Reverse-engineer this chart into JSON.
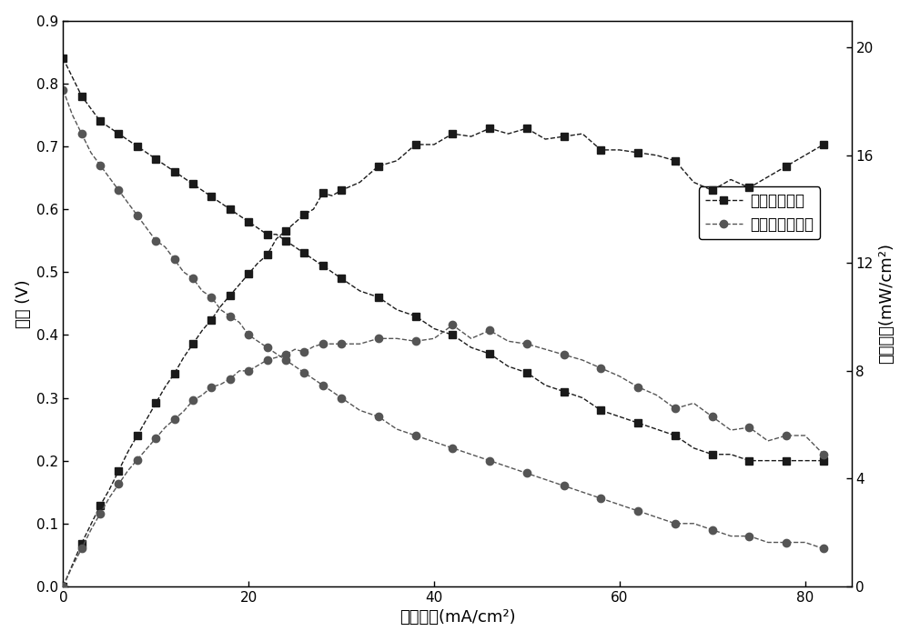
{
  "title": "",
  "xlabel": "电流密度(mA/cm²)",
  "ylabel_left": "电压 (V)",
  "ylabel_right": "功率密度(mW/cm²)",
  "xlim": [
    0,
    85
  ],
  "ylim_left": [
    0,
    0.9
  ],
  "ylim_right": [
    0,
    21
  ],
  "yticks_left": [
    0.0,
    0.1,
    0.2,
    0.3,
    0.4,
    0.5,
    0.6,
    0.7,
    0.8,
    0.9
  ],
  "yticks_right": [
    0,
    4,
    8,
    12,
    16,
    20
  ],
  "xticks": [
    0,
    20,
    40,
    60,
    80
  ],
  "legend_labels": [
    "表面图案结构",
    "表面无图案结构"
  ],
  "color_square": "#1a1a1a",
  "color_circle": "#555555",
  "v_pat_x": [
    0,
    1,
    2,
    3,
    4,
    5,
    6,
    7,
    8,
    9,
    10,
    11,
    12,
    13,
    14,
    15,
    16,
    17,
    18,
    19,
    20,
    21,
    22,
    23,
    24,
    25,
    26,
    27,
    28,
    29,
    30,
    32,
    34,
    36,
    38,
    40,
    42,
    44,
    46,
    48,
    50,
    52,
    54,
    56,
    58,
    60,
    62,
    64,
    66,
    68,
    70,
    72,
    74,
    76,
    78,
    80,
    82
  ],
  "v_pat_y": [
    0.84,
    0.81,
    0.78,
    0.76,
    0.74,
    0.73,
    0.72,
    0.71,
    0.7,
    0.69,
    0.68,
    0.67,
    0.66,
    0.65,
    0.64,
    0.63,
    0.62,
    0.61,
    0.6,
    0.59,
    0.58,
    0.57,
    0.56,
    0.56,
    0.55,
    0.54,
    0.53,
    0.52,
    0.51,
    0.5,
    0.49,
    0.47,
    0.46,
    0.44,
    0.43,
    0.41,
    0.4,
    0.38,
    0.37,
    0.35,
    0.34,
    0.32,
    0.31,
    0.3,
    0.28,
    0.27,
    0.26,
    0.25,
    0.24,
    0.22,
    0.21,
    0.21,
    0.2,
    0.2,
    0.2,
    0.2,
    0.2
  ],
  "v_pln_x": [
    0,
    1,
    2,
    3,
    4,
    5,
    6,
    7,
    8,
    9,
    10,
    11,
    12,
    13,
    14,
    15,
    16,
    17,
    18,
    19,
    20,
    21,
    22,
    23,
    24,
    25,
    26,
    27,
    28,
    29,
    30,
    32,
    34,
    36,
    38,
    40,
    42,
    44,
    46,
    48,
    50,
    52,
    54,
    56,
    58,
    60,
    62,
    64,
    66,
    68,
    70,
    72,
    74,
    76,
    78,
    80,
    82
  ],
  "v_pln_y": [
    0.79,
    0.75,
    0.72,
    0.69,
    0.67,
    0.65,
    0.63,
    0.61,
    0.59,
    0.57,
    0.55,
    0.54,
    0.52,
    0.5,
    0.49,
    0.47,
    0.46,
    0.44,
    0.43,
    0.42,
    0.4,
    0.39,
    0.38,
    0.37,
    0.36,
    0.35,
    0.34,
    0.33,
    0.32,
    0.31,
    0.3,
    0.28,
    0.27,
    0.25,
    0.24,
    0.23,
    0.22,
    0.21,
    0.2,
    0.19,
    0.18,
    0.17,
    0.16,
    0.15,
    0.14,
    0.13,
    0.12,
    0.11,
    0.1,
    0.1,
    0.09,
    0.08,
    0.08,
    0.07,
    0.07,
    0.07,
    0.06
  ],
  "p_pat_x": [
    0,
    1,
    2,
    3,
    4,
    5,
    6,
    7,
    8,
    9,
    10,
    11,
    12,
    13,
    14,
    15,
    16,
    17,
    18,
    19,
    20,
    21,
    22,
    23,
    24,
    25,
    26,
    27,
    28,
    29,
    30,
    32,
    34,
    36,
    38,
    40,
    42,
    44,
    46,
    48,
    50,
    52,
    54,
    56,
    58,
    60,
    62,
    64,
    66,
    68,
    70,
    72,
    74,
    76,
    78,
    80,
    82
  ],
  "p_pat_y": [
    0.0,
    0.8,
    1.6,
    2.3,
    3.0,
    3.6,
    4.3,
    5.0,
    5.6,
    6.2,
    6.8,
    7.4,
    7.9,
    8.5,
    9.0,
    9.5,
    9.9,
    10.4,
    10.8,
    11.2,
    11.6,
    12.0,
    12.3,
    12.9,
    13.2,
    13.5,
    13.8,
    14.0,
    14.6,
    14.5,
    14.7,
    15.0,
    15.6,
    15.8,
    16.4,
    16.4,
    16.8,
    16.7,
    17.0,
    16.8,
    17.0,
    16.6,
    16.7,
    16.8,
    16.2,
    16.2,
    16.1,
    16.0,
    15.8,
    15.0,
    14.7,
    15.1,
    14.8,
    15.2,
    15.6,
    16.0,
    16.4
  ],
  "p_pln_x": [
    0,
    1,
    2,
    3,
    4,
    5,
    6,
    7,
    8,
    9,
    10,
    11,
    12,
    13,
    14,
    15,
    16,
    17,
    18,
    19,
    20,
    21,
    22,
    23,
    24,
    25,
    26,
    27,
    28,
    29,
    30,
    32,
    34,
    36,
    38,
    40,
    42,
    44,
    46,
    48,
    50,
    52,
    54,
    56,
    58,
    60,
    62,
    64,
    66,
    68,
    70,
    72,
    74,
    76,
    78,
    80,
    82
  ],
  "p_pln_y": [
    0.0,
    0.75,
    1.4,
    2.1,
    2.7,
    3.3,
    3.8,
    4.3,
    4.7,
    5.1,
    5.5,
    5.9,
    6.2,
    6.5,
    6.9,
    7.1,
    7.4,
    7.5,
    7.7,
    8.0,
    8.0,
    8.2,
    8.4,
    8.5,
    8.6,
    8.8,
    8.7,
    8.9,
    9.0,
    9.0,
    9.0,
    9.0,
    9.2,
    9.2,
    9.1,
    9.2,
    9.7,
    9.2,
    9.5,
    9.1,
    9.0,
    8.8,
    8.6,
    8.4,
    8.1,
    7.8,
    7.4,
    7.1,
    6.6,
    6.8,
    6.3,
    5.8,
    5.9,
    5.4,
    5.6,
    5.6,
    4.9
  ]
}
